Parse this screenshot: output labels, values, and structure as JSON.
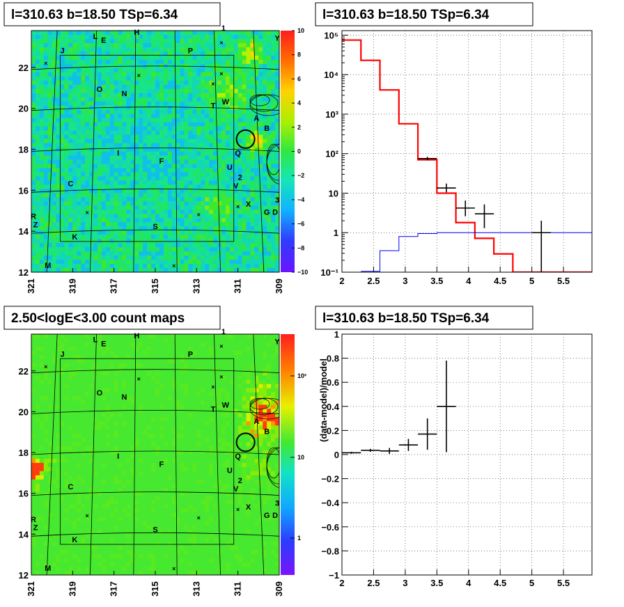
{
  "colors": {
    "red_model": "#ff0000",
    "blue_model": "#0000ff",
    "data_points": "#000000",
    "map_background": "#33ee33"
  },
  "chart_data": [
    {
      "type": "heatmap",
      "title": "l=310.63 b=18.50 TSp=6.34",
      "x_ticks": [
        "321",
        "319",
        "317",
        "315",
        "313",
        "311",
        "309"
      ],
      "y_ticks": [
        "12",
        "14",
        "16",
        "18",
        "20",
        "22"
      ],
      "xlim": [
        321,
        309
      ],
      "ylim": [
        12,
        23.8
      ],
      "colorbar": {
        "scale": "linear",
        "range": [
          -10,
          10
        ],
        "ticks": [
          "10",
          "8",
          "6",
          "4",
          "2",
          "0",
          "−2",
          "−4",
          "−6",
          "−8",
          "−10"
        ]
      },
      "labels": [
        "1",
        "2",
        "3",
        "A",
        "B",
        "C",
        "D",
        "E",
        "F",
        "G",
        "H",
        "I",
        "J",
        "K",
        "L",
        "M",
        "N",
        "O",
        "P",
        "Q",
        "R",
        "S",
        "T",
        "U",
        "V",
        "W",
        "X",
        "Y",
        "Z"
      ]
    },
    {
      "type": "line",
      "title": "l=310.63 b=18.50 TSp=6.34",
      "x_ticks": [
        "2",
        "2.5",
        "3",
        "3.5",
        "4",
        "4.5",
        "5",
        "5.5"
      ],
      "y_ticks": [
        "10⁻¹",
        "1",
        "10",
        "10²",
        "10³",
        "10⁴",
        "10⁵"
      ],
      "xlim": [
        2,
        5.95
      ],
      "ylim": [
        0.1,
        130000
      ],
      "yscale": "log",
      "grid": true,
      "series": [
        {
          "type": "step",
          "color": "red",
          "edges": [
            2,
            2.3,
            2.6,
            2.9,
            3.2,
            3.5,
            3.8,
            4.1,
            4.4,
            4.7,
            5.95
          ],
          "values": [
            75000,
            23000,
            4100,
            570,
            70,
            10,
            1.8,
            0.72,
            0.29,
            0.1
          ]
        },
        {
          "type": "step",
          "color": "blue",
          "edges": [
            2.3,
            2.6,
            2.9,
            3.2,
            3.5,
            5.95
          ],
          "values": [
            0.105,
            0.35,
            0.8,
            0.95,
            1.0
          ]
        },
        {
          "type": "points",
          "color": "black",
          "points": [
            {
              "x": 3.35,
              "y": 75,
              "xerr": 0.15,
              "ylo": 68,
              "yhi": 83
            },
            {
              "x": 3.65,
              "y": 13.5,
              "xerr": 0.15,
              "ylo": 10.5,
              "yhi": 17.5
            },
            {
              "x": 3.95,
              "y": 4.2,
              "xerr": 0.15,
              "ylo": 2.6,
              "yhi": 6.5
            },
            {
              "x": 4.25,
              "y": 3.0,
              "xerr": 0.15,
              "ylo": 1.3,
              "yhi": 5.2
            },
            {
              "x": 5.15,
              "y": 1.0,
              "xerr": 0.15,
              "ylo": 0.1,
              "yhi": 2.0
            }
          ]
        }
      ]
    },
    {
      "type": "heatmap",
      "title": "2.50<logE<3.00 count maps",
      "x_ticks": [
        "321",
        "319",
        "317",
        "315",
        "313",
        "311",
        "309"
      ],
      "y_ticks": [
        "12",
        "14",
        "16",
        "18",
        "20",
        "22"
      ],
      "xlim": [
        321,
        309
      ],
      "ylim": [
        12,
        23.8
      ],
      "colorbar": {
        "scale": "log",
        "ticks": [
          "10²",
          "10",
          "1"
        ]
      },
      "labels": [
        "1",
        "2",
        "3",
        "A",
        "B",
        "C",
        "D",
        "E",
        "F",
        "G",
        "H",
        "I",
        "J",
        "K",
        "L",
        "M",
        "N",
        "O",
        "P",
        "Q",
        "R",
        "S",
        "T",
        "U",
        "V",
        "W",
        "X",
        "Y",
        "Z"
      ]
    },
    {
      "type": "scatter",
      "title": "l=310.63 b=18.50 TSp=6.34",
      "ylabel": "(data-model)/model",
      "x_ticks": [
        "2",
        "2.5",
        "3",
        "3.5",
        "4",
        "4.5",
        "5",
        "5.5"
      ],
      "y_ticks": [
        "1",
        "0.8",
        "0.6",
        "0.4",
        "0.2",
        "0",
        "−0.2",
        "−0.4",
        "−0.6",
        "−0.8",
        "−1"
      ],
      "xlim": [
        2,
        5.95
      ],
      "ylim": [
        -1,
        1
      ],
      "grid": true,
      "series": [
        {
          "color": "black",
          "points": [
            {
              "x": 2.15,
              "y": 0.015,
              "xerr": 0.15,
              "yerr": 0.008
            },
            {
              "x": 2.45,
              "y": 0.035,
              "xerr": 0.15,
              "yerr": 0.012
            },
            {
              "x": 2.75,
              "y": 0.03,
              "xerr": 0.15,
              "yerr": 0.025
            },
            {
              "x": 3.05,
              "y": 0.08,
              "xerr": 0.15,
              "yerr": 0.05
            },
            {
              "x": 3.35,
              "y": 0.17,
              "xerr": 0.15,
              "yerr": 0.13
            },
            {
              "x": 3.65,
              "y": 0.4,
              "xerr": 0.15,
              "yerr": 0.38
            }
          ]
        }
      ]
    }
  ]
}
